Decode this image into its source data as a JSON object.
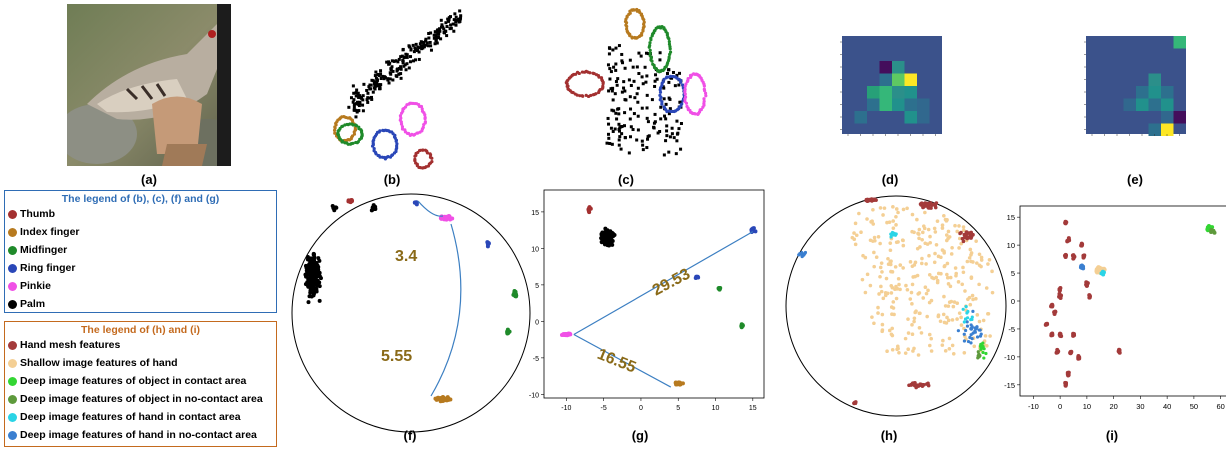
{
  "captions": [
    "(a)",
    "(b)",
    "(c)",
    "(d)",
    "(e)",
    "(f)",
    "(g)",
    "(h)",
    "(i)"
  ],
  "legend1": {
    "title": "The legend of (b), (c), (f) and (g)",
    "border_color": "#2f6db5",
    "items": [
      {
        "label": "Thumb",
        "color": "#a33030"
      },
      {
        "label": "Index finger",
        "color": "#b77a1f"
      },
      {
        "label": "Midfinger",
        "color": "#1f8a2a"
      },
      {
        "label": "Ring finger",
        "color": "#2a47b8"
      },
      {
        "label": "Pinkie",
        "color": "#f050e6"
      },
      {
        "label": "Palm",
        "color": "#000000"
      }
    ]
  },
  "legend2": {
    "title": "The legend of (h) and (i)",
    "border_color": "#c46a1e",
    "items": [
      {
        "label": "Hand mesh features",
        "color": "#a33a3a"
      },
      {
        "label": "Shallow image features of hand",
        "color": "#f4cf94"
      },
      {
        "label": "Deep image features of object in contact area",
        "color": "#33d633"
      },
      {
        "label": "Deep image features of object in no-contact area",
        "color": "#5e9a3c"
      },
      {
        "label": "Deep image features of hand in contact area",
        "color": "#2ad4e6"
      },
      {
        "label": "Deep image features of hand in no-contact area",
        "color": "#3a7fd0"
      }
    ]
  },
  "panel_f": {
    "distance_short": "3.4",
    "distance_long": "5.55",
    "label_color": "#8a6a18"
  },
  "panel_g": {
    "distance_long": "29.53",
    "distance_short": "16.55",
    "label_color": "#8a6a18",
    "x_ticks": [
      "-10",
      "-5",
      "0",
      "5",
      "10",
      "15"
    ],
    "y_ticks": [
      "15",
      "10",
      "5",
      "0",
      "-5",
      "-10"
    ]
  },
  "panel_i": {
    "x_ticks": [
      "-10",
      "0",
      "10",
      "20",
      "30",
      "40",
      "50",
      "60"
    ],
    "y_ticks": [
      "15",
      "10",
      "5",
      "0",
      "-5",
      "-10",
      "-15"
    ]
  },
  "colors": {
    "heatmap_bg": "#3b528b",
    "line": "#3c7fc2"
  }
}
